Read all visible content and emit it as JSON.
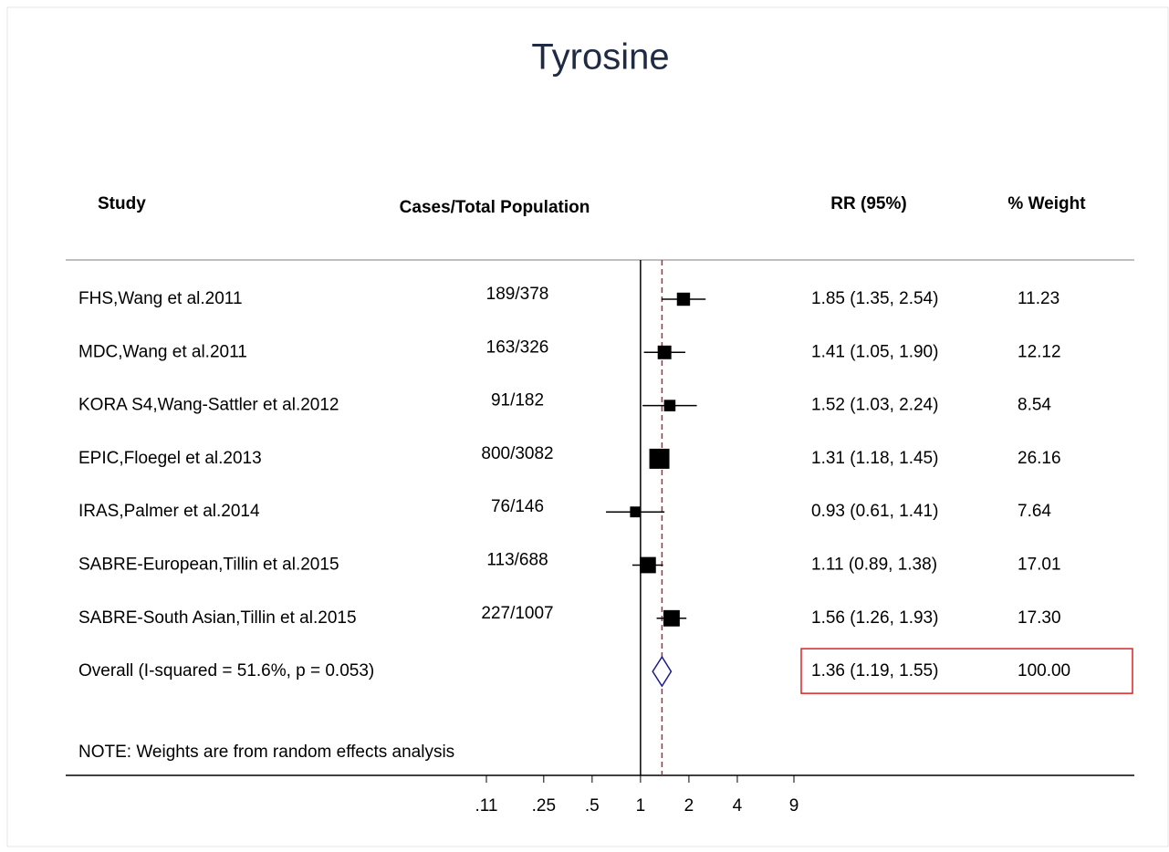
{
  "chart_data": {
    "type": "forest",
    "title": "Tyrosine",
    "columns": {
      "study": "Study",
      "cases": "Cases/Total Population",
      "rr": "RR (95%)",
      "weight": "% Weight"
    },
    "categories": [
      "FHS,Wang et al.2011",
      "MDC,Wang et al.2011",
      "KORA S4,Wang-Sattler et al.2012",
      "EPIC,Floegel et al.2013",
      "IRAS,Palmer et al.2014",
      "SABRE-European,Tillin et al.2015",
      "SABRE-South Asian,Tillin et al.2015"
    ],
    "cases": [
      "189/378",
      "163/326",
      "91/182",
      "800/3082",
      "76/146",
      "113/688",
      "227/1007"
    ],
    "values": [
      1.85,
      1.41,
      1.52,
      1.31,
      0.93,
      1.11,
      1.56
    ],
    "lower": [
      1.35,
      1.05,
      1.03,
      1.18,
      0.61,
      0.89,
      1.26
    ],
    "upper": [
      2.54,
      1.9,
      2.24,
      1.45,
      1.41,
      1.38,
      1.93
    ],
    "value_labels": [
      "1.85 (1.35, 2.54)",
      "1.41 (1.05, 1.90)",
      "1.52 (1.03, 2.24)",
      "1.31 (1.18, 1.45)",
      "0.93 (0.61, 1.41)",
      "1.11 (0.89, 1.38)",
      "1.56 (1.26, 1.93)"
    ],
    "weights": [
      11.23,
      12.12,
      8.54,
      26.16,
      7.64,
      17.01,
      17.3
    ],
    "weight_labels": [
      "11.23",
      "12.12",
      "8.54",
      "26.16",
      "7.64",
      "17.01",
      "17.30"
    ],
    "overall": {
      "label": "Overall  (I-squared = 51.6%, p = 0.053)",
      "value": 1.36,
      "lower": 1.19,
      "upper": 1.55,
      "value_label": "1.36 (1.19, 1.55)",
      "weight": 100,
      "weight_label": "100.00"
    },
    "note": "NOTE: Weights are from random effects analysis",
    "xscale": "log",
    "null_value": 1,
    "xlim": [
      0.11,
      9
    ],
    "xticks": [
      {
        "value": 0.11,
        "label": ".11"
      },
      {
        "value": 0.25,
        "label": ".25"
      },
      {
        "value": 0.5,
        "label": ".5"
      },
      1,
      2,
      4,
      9
    ],
    "color": "#000000",
    "overall_color": "#1a1a8c",
    "overall_line_color": "#a0303c",
    "highlight_color": "#e02020"
  }
}
